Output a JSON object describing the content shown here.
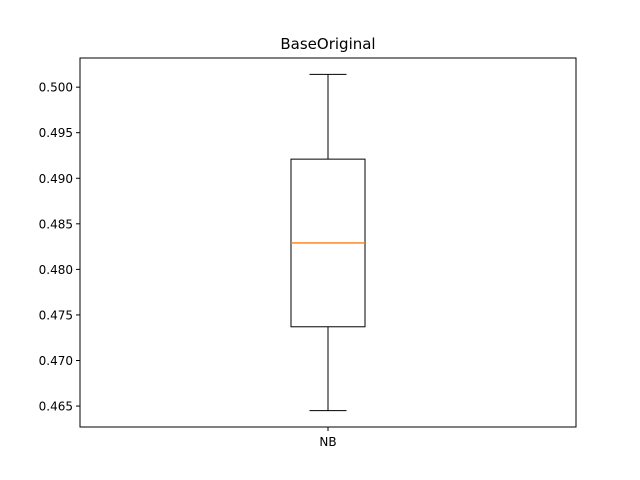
{
  "chart_data": {
    "type": "boxplot",
    "title": "BaseOriginal",
    "xlabel": "",
    "ylabel": "",
    "categories": [
      "NB"
    ],
    "boxes": [
      {
        "label": "NB",
        "whisker_low": 0.4645,
        "q1": 0.4737,
        "median": 0.4829,
        "q3": 0.4921,
        "whisker_high": 0.5014
      }
    ],
    "ylim": [
      0.4627,
      0.5032
    ],
    "yticks": [
      0.465,
      0.47,
      0.475,
      0.48,
      0.485,
      0.49,
      0.495,
      0.5
    ],
    "ytick_labels": [
      "0.465",
      "0.470",
      "0.475",
      "0.480",
      "0.485",
      "0.490",
      "0.495",
      "0.500"
    ],
    "grid": false,
    "colors": {
      "box": "#000000",
      "median": "#ff7f0e",
      "background": "#ffffff"
    }
  }
}
